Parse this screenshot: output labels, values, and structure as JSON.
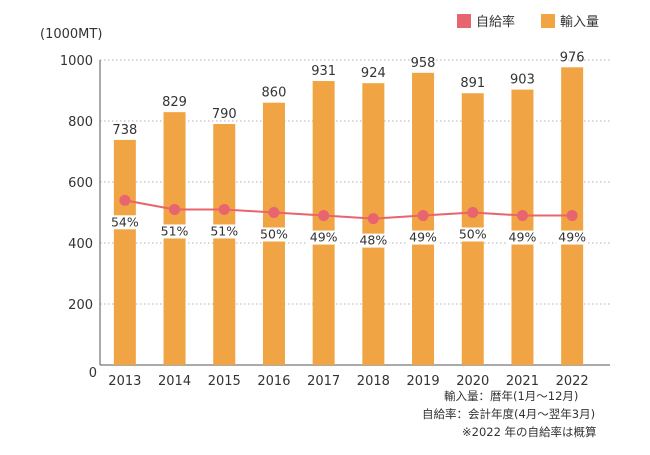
{
  "chart_data": {
    "type": "bar",
    "unit_label": "(1000MT)",
    "categories": [
      "2013",
      "2014",
      "2015",
      "2016",
      "2017",
      "2018",
      "2019",
      "2020",
      "2021",
      "2022"
    ],
    "ylim": [
      0,
      1000
    ],
    "yticks": [
      0,
      200,
      400,
      600,
      800,
      1000
    ],
    "series": [
      {
        "name": "輸入量",
        "type": "bar",
        "color": "#f0a444",
        "values": [
          738,
          829,
          790,
          860,
          931,
          924,
          958,
          891,
          903,
          976
        ]
      },
      {
        "name": "自給率",
        "type": "line",
        "color": "#e8646e",
        "values": [
          54,
          51,
          51,
          50,
          49,
          48,
          49,
          50,
          49,
          49
        ],
        "labels": [
          "54%",
          "51%",
          "51%",
          "50%",
          "49%",
          "48%",
          "49%",
          "50%",
          "49%",
          "49%"
        ]
      }
    ],
    "grid": true,
    "legend_position": "top-right",
    "notes": [
      "輸入量：暦年(1月〜12月)",
      "自給率：会計年度(4月〜翌年3月)",
      "※2022 年の自給率は概算"
    ]
  }
}
